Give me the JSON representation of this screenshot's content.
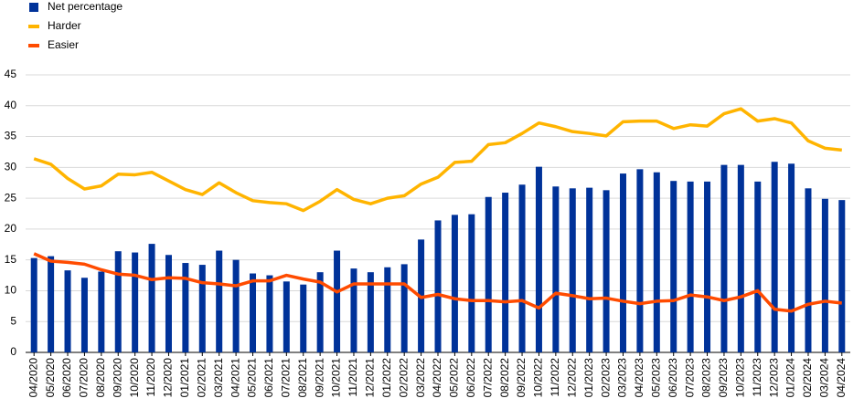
{
  "chart_data": {
    "type": "combo",
    "categories": [
      "04/2020",
      "05/2020",
      "06/2020",
      "07/2020",
      "08/2020",
      "09/2020",
      "10/2020",
      "11/2020",
      "12/2020",
      "01/2021",
      "02/2021",
      "03/2021",
      "04/2021",
      "05/2021",
      "06/2021",
      "07/2021",
      "08/2021",
      "09/2021",
      "10/2021",
      "11/2021",
      "12/2021",
      "01/2022",
      "02/2022",
      "03/2022",
      "04/2022",
      "05/2022",
      "06/2022",
      "07/2022",
      "08/2022",
      "09/2022",
      "10/2022",
      "11/2022",
      "12/2022",
      "01/2023",
      "02/2023",
      "03/2023",
      "04/2023",
      "05/2023",
      "06/2023",
      "07/2023",
      "08/2023",
      "09/2023",
      "10/2023",
      "11/2023",
      "12/2023",
      "01/2024",
      "02/2024",
      "03/2024",
      "04/2024"
    ],
    "series": [
      {
        "name": "Net percentage",
        "type": "bar",
        "color": "#003299",
        "values": [
          15.3,
          15.6,
          13.3,
          12.1,
          13.1,
          16.4,
          16.2,
          17.6,
          15.8,
          14.5,
          14.2,
          16.5,
          15.0,
          12.8,
          12.5,
          11.5,
          11.0,
          13.0,
          16.5,
          13.6,
          13.0,
          13.8,
          14.3,
          18.3,
          21.4,
          22.3,
          22.4,
          25.2,
          25.9,
          27.2,
          30.1,
          26.9,
          26.6,
          26.7,
          26.3,
          29.0,
          29.7,
          29.2,
          27.8,
          27.7,
          27.7,
          30.4,
          30.4,
          27.7,
          30.9,
          30.6,
          26.6,
          24.9,
          24.7
        ]
      },
      {
        "name": "Harder",
        "type": "line",
        "color": "#ffb400",
        "values": [
          31.4,
          30.5,
          28.2,
          26.5,
          27.0,
          28.9,
          28.8,
          29.2,
          27.8,
          26.4,
          25.6,
          27.5,
          25.9,
          24.6,
          24.3,
          24.1,
          23.0,
          24.5,
          26.4,
          24.8,
          24.1,
          25.0,
          25.4,
          27.3,
          28.4,
          30.8,
          31.0,
          33.7,
          34.0,
          35.5,
          37.2,
          36.6,
          35.8,
          35.5,
          35.1,
          37.4,
          37.5,
          37.5,
          36.3,
          36.9,
          36.7,
          38.7,
          39.5,
          37.5,
          37.9,
          37.2,
          34.3,
          33.1,
          32.8
        ]
      },
      {
        "name": "Easier",
        "type": "line",
        "color": "#ff4b00",
        "values": [
          16.0,
          14.8,
          14.6,
          14.3,
          13.4,
          12.7,
          12.5,
          11.8,
          12.1,
          12.0,
          11.3,
          11.1,
          10.8,
          11.6,
          11.6,
          12.5,
          11.9,
          11.4,
          9.8,
          11.1,
          11.1,
          11.1,
          11.1,
          8.9,
          9.4,
          8.7,
          8.4,
          8.4,
          8.2,
          8.4,
          7.2,
          9.6,
          9.2,
          8.7,
          8.8,
          8.3,
          7.9,
          8.3,
          8.4,
          9.3,
          9.0,
          8.4,
          9.0,
          10.0,
          7.0,
          6.7,
          7.8,
          8.3,
          8.0
        ]
      }
    ],
    "ylim": [
      0,
      45
    ],
    "yticks": [
      0,
      5,
      10,
      15,
      20,
      25,
      30,
      35,
      40,
      45
    ],
    "grid": true
  }
}
